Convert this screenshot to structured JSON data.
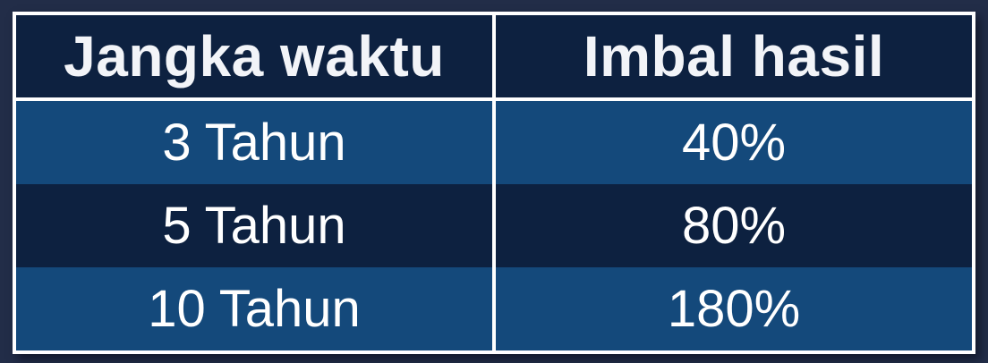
{
  "page": {
    "background_color": "#222D48"
  },
  "table": {
    "header": {
      "period_label": "Jangka waktu",
      "yield_label": "Imbal hasil"
    },
    "rows": [
      {
        "period": "3 Tahun",
        "yield": "40%"
      },
      {
        "period": "5 Tahun",
        "yield": "80%"
      },
      {
        "period": "10 Tahun",
        "yield": "180%"
      }
    ],
    "colors": {
      "header_background": "#0D2140",
      "row_dark": "#0D2140",
      "row_light": "#14497B",
      "border": "#FFFFFF",
      "header_text": "#F2F4F8",
      "row_text": "#FFFFFF"
    }
  },
  "chart_data": {
    "type": "table",
    "title": "",
    "columns": [
      "Jangka waktu",
      "Imbal hasil"
    ],
    "rows": [
      [
        "3 Tahun",
        "40%"
      ],
      [
        "5 Tahun",
        "80%"
      ],
      [
        "10 Tahun",
        "180%"
      ]
    ],
    "categories": [
      "3 Tahun",
      "5 Tahun",
      "10 Tahun"
    ],
    "values_percent": [
      40,
      80,
      180
    ]
  }
}
